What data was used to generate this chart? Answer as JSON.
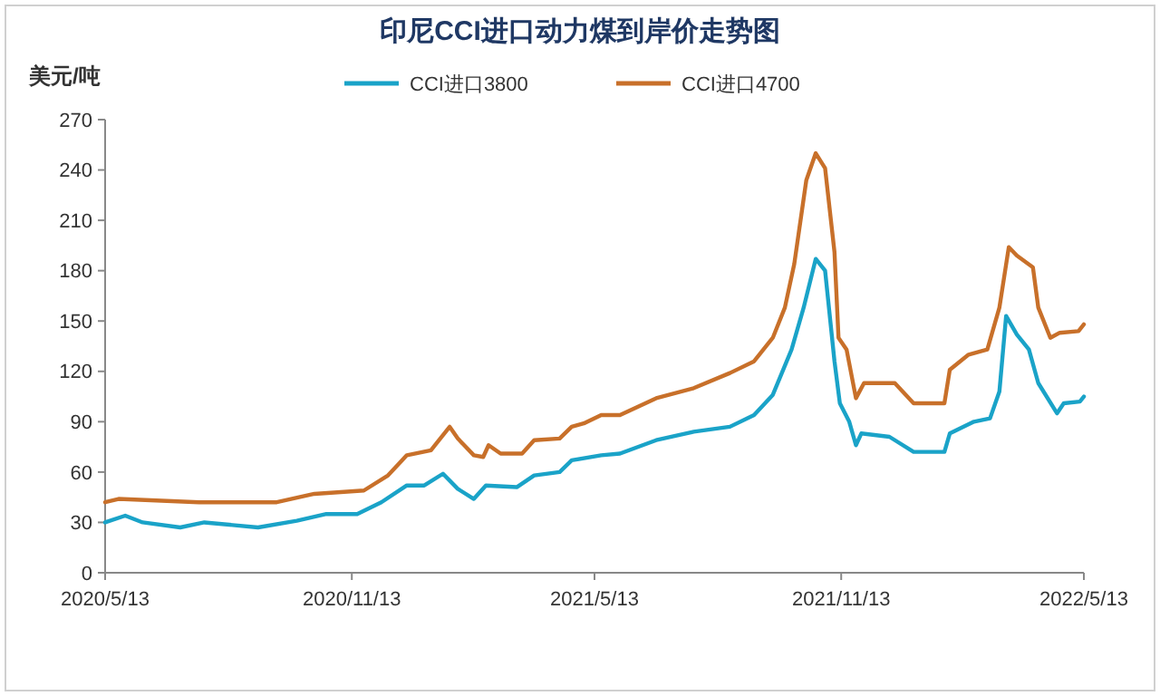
{
  "chart_data": {
    "type": "line",
    "title": "印尼CCI进口动力煤到岸价走势图",
    "ylabel": "美元/吨",
    "legend": "top",
    "grid": false,
    "marker": "none",
    "line_style": "solid",
    "xlim": [
      "2020-05-13",
      "2022-05-13"
    ],
    "xticks": [
      {
        "value": "2020-05-13",
        "label": "2020/5/13"
      },
      {
        "value": "2020-11-13",
        "label": "2020/11/13"
      },
      {
        "value": "2021-05-13",
        "label": "2021/5/13"
      },
      {
        "value": "2021-11-13",
        "label": "2021/11/13"
      },
      {
        "value": "2022-05-13",
        "label": "2022/5/13"
      }
    ],
    "ylim": [
      0,
      270
    ],
    "yticks": [
      0,
      30,
      60,
      90,
      120,
      150,
      180,
      210,
      240,
      270
    ],
    "series": [
      {
        "name": "CCI进口3800",
        "color": "#1aa3c8",
        "x": [
          "2020-05-13",
          "2020-05-28",
          "2020-06-10",
          "2020-07-08",
          "2020-07-26",
          "2020-09-04",
          "2020-10-03",
          "2020-10-25",
          "2020-11-17",
          "2020-12-05",
          "2020-12-24",
          "2021-01-06",
          "2021-01-20",
          "2021-01-31",
          "2021-02-12",
          "2021-02-21",
          "2021-03-16",
          "2021-03-29",
          "2021-04-17",
          "2021-04-26",
          "2021-05-18",
          "2021-06-01",
          "2021-06-28",
          "2021-07-26",
          "2021-08-22",
          "2021-09-09",
          "2021-09-23",
          "2021-10-07",
          "2021-10-16",
          "2021-10-25",
          "2021-11-01",
          "2021-11-08",
          "2021-11-12",
          "2021-11-19",
          "2021-11-24",
          "2021-11-28",
          "2021-12-19",
          "2022-01-06",
          "2022-01-29",
          "2022-02-02",
          "2022-02-20",
          "2022-03-04",
          "2022-03-11",
          "2022-03-16",
          "2022-03-24",
          "2022-04-02",
          "2022-04-09",
          "2022-04-23",
          "2022-04-28",
          "2022-05-10",
          "2022-05-13"
        ],
        "values": [
          30,
          34,
          30,
          27,
          30,
          27,
          31,
          35,
          35,
          42,
          52,
          52,
          59,
          50,
          44,
          52,
          51,
          58,
          60,
          67,
          70,
          71,
          79,
          84,
          87,
          94,
          106,
          133,
          158,
          187,
          180,
          126,
          101,
          90,
          76,
          83,
          81,
          72,
          72,
          83,
          90,
          92,
          108,
          153,
          142,
          133,
          113,
          95,
          101,
          102,
          105
        ]
      },
      {
        "name": "CCI进口4700",
        "color": "#c8702a",
        "x": [
          "2020-05-13",
          "2020-05-23",
          "2020-07-22",
          "2020-09-18",
          "2020-10-16",
          "2020-11-22",
          "2020-12-10",
          "2020-12-24",
          "2021-01-11",
          "2021-01-25",
          "2021-01-31",
          "2021-02-12",
          "2021-02-19",
          "2021-02-23",
          "2021-03-04",
          "2021-03-20",
          "2021-03-29",
          "2021-04-17",
          "2021-04-26",
          "2021-05-05",
          "2021-05-18",
          "2021-06-01",
          "2021-06-28",
          "2021-07-26",
          "2021-08-22",
          "2021-09-09",
          "2021-09-23",
          "2021-10-02",
          "2021-10-09",
          "2021-10-18",
          "2021-10-25",
          "2021-11-01",
          "2021-11-08",
          "2021-11-11",
          "2021-11-17",
          "2021-11-24",
          "2021-11-30",
          "2021-12-23",
          "2022-01-06",
          "2022-01-29",
          "2022-02-02",
          "2022-02-16",
          "2022-03-02",
          "2022-03-11",
          "2022-03-18",
          "2022-03-24",
          "2022-04-05",
          "2022-04-09",
          "2022-04-18",
          "2022-04-25",
          "2022-05-09",
          "2022-05-13"
        ],
        "values": [
          42,
          44,
          42,
          42,
          47,
          49,
          58,
          70,
          73,
          87,
          80,
          70,
          69,
          76,
          71,
          71,
          79,
          80,
          87,
          89,
          94,
          94,
          104,
          110,
          119,
          126,
          140,
          158,
          184,
          234,
          250,
          241,
          191,
          140,
          133,
          104,
          113,
          113,
          101,
          101,
          121,
          130,
          133,
          158,
          194,
          189,
          182,
          158,
          140,
          143,
          144,
          148
        ]
      }
    ]
  }
}
